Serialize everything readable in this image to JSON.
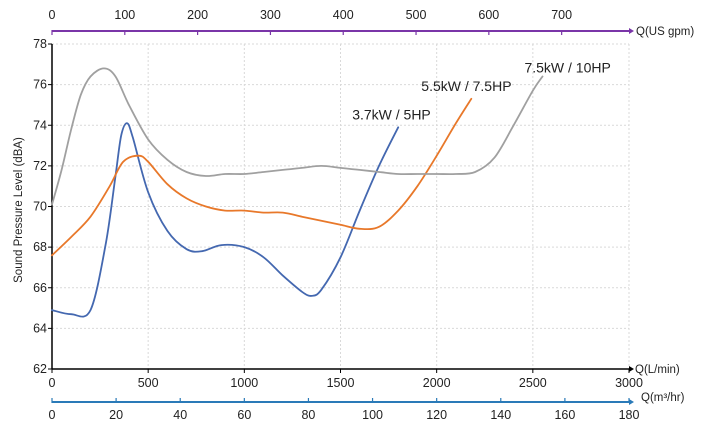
{
  "chart_data": {
    "type": "line",
    "ylabel": "Sound Pressure Level (dBA)",
    "ylim": [
      62,
      78
    ],
    "yticks": [
      62,
      64,
      66,
      68,
      70,
      72,
      74,
      76,
      78
    ],
    "grid": true,
    "axes": {
      "x_lmin": {
        "label": "Q(L/min)",
        "range": [
          0,
          3000
        ],
        "position": "bottom",
        "ticks": [
          0,
          500,
          1000,
          1500,
          2000,
          2500,
          3000
        ]
      },
      "x_m3hr": {
        "label": "Q(m³/hr)",
        "range": [
          0,
          180
        ],
        "position": "bottom-secondary",
        "ticks": [
          0,
          20,
          40,
          60,
          80,
          100,
          120,
          140,
          160,
          180
        ],
        "color": "#2a7ab8"
      },
      "x_usgpm": {
        "label": "Q(US gpm)",
        "range": [
          0,
          792.5
        ],
        "position": "top",
        "ticks": [
          0,
          100,
          200,
          300,
          400,
          500,
          600,
          700
        ],
        "color": "#7a35a8"
      }
    },
    "series": [
      {
        "name": "3.7kW / 5HP",
        "color": "#4468b0",
        "points": [
          [
            0,
            64.9
          ],
          [
            100,
            64.7
          ],
          [
            200,
            64.9
          ],
          [
            280,
            68.2
          ],
          [
            330,
            71.5
          ],
          [
            360,
            73.5
          ],
          [
            390,
            74.1
          ],
          [
            420,
            73.4
          ],
          [
            500,
            70.7
          ],
          [
            600,
            68.8
          ],
          [
            700,
            67.9
          ],
          [
            780,
            67.8
          ],
          [
            880,
            68.1
          ],
          [
            1000,
            68.0
          ],
          [
            1100,
            67.5
          ],
          [
            1200,
            66.6
          ],
          [
            1300,
            65.8
          ],
          [
            1350,
            65.6
          ],
          [
            1400,
            65.9
          ],
          [
            1500,
            67.5
          ],
          [
            1600,
            69.8
          ],
          [
            1700,
            72.0
          ],
          [
            1800,
            73.9
          ]
        ]
      },
      {
        "name": "5.5kW / 7.5HP",
        "color": "#e8782a",
        "points": [
          [
            0,
            67.6
          ],
          [
            100,
            68.5
          ],
          [
            200,
            69.5
          ],
          [
            300,
            71.0
          ],
          [
            370,
            72.2
          ],
          [
            450,
            72.5
          ],
          [
            500,
            72.2
          ],
          [
            600,
            71.1
          ],
          [
            700,
            70.4
          ],
          [
            800,
            70.0
          ],
          [
            900,
            69.8
          ],
          [
            1000,
            69.8
          ],
          [
            1100,
            69.7
          ],
          [
            1200,
            69.7
          ],
          [
            1300,
            69.5
          ],
          [
            1400,
            69.3
          ],
          [
            1500,
            69.1
          ],
          [
            1600,
            68.9
          ],
          [
            1700,
            69.0
          ],
          [
            1800,
            69.8
          ],
          [
            1900,
            71.0
          ],
          [
            2000,
            72.5
          ],
          [
            2100,
            74.1
          ],
          [
            2180,
            75.3
          ]
        ]
      },
      {
        "name": "7.5kW / 10HP",
        "color": "#a0a0a0",
        "points": [
          [
            0,
            70.1
          ],
          [
            50,
            71.8
          ],
          [
            100,
            73.8
          ],
          [
            150,
            75.5
          ],
          [
            200,
            76.4
          ],
          [
            270,
            76.8
          ],
          [
            330,
            76.4
          ],
          [
            400,
            75.0
          ],
          [
            500,
            73.3
          ],
          [
            600,
            72.3
          ],
          [
            700,
            71.7
          ],
          [
            800,
            71.5
          ],
          [
            900,
            71.6
          ],
          [
            1000,
            71.6
          ],
          [
            1100,
            71.7
          ],
          [
            1200,
            71.8
          ],
          [
            1300,
            71.9
          ],
          [
            1400,
            72.0
          ],
          [
            1500,
            71.9
          ],
          [
            1600,
            71.8
          ],
          [
            1700,
            71.7
          ],
          [
            1800,
            71.6
          ],
          [
            1900,
            71.6
          ],
          [
            2000,
            71.6
          ],
          [
            2100,
            71.6
          ],
          [
            2200,
            71.7
          ],
          [
            2300,
            72.4
          ],
          [
            2400,
            74.0
          ],
          [
            2500,
            75.7
          ],
          [
            2550,
            76.4
          ]
        ]
      }
    ]
  }
}
